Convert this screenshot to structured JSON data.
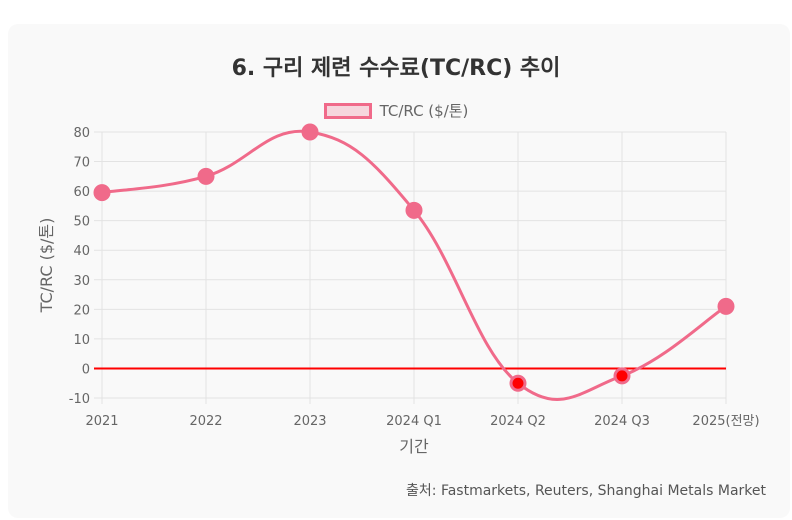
{
  "chart_data": {
    "type": "line",
    "title": "6. 구리 제련 수수료(TC/RC) 추이",
    "xlabel": "기간",
    "ylabel": "TC/RC ($/톤)",
    "categories": [
      "2021",
      "2022",
      "2023",
      "2024 Q1",
      "2024 Q2",
      "2024 Q3",
      "2025(전망)"
    ],
    "series": [
      {
        "name": "TC/RC ($/톤)",
        "values": [
          59.5,
          65,
          80,
          53.5,
          -5,
          -2.5,
          21
        ]
      }
    ],
    "ylim": [
      -10,
      80
    ],
    "yticks": [
      -10,
      0,
      10,
      20,
      30,
      40,
      50,
      60,
      70,
      80
    ],
    "grid": true,
    "legend": "top-center",
    "reference_line": {
      "y": 0,
      "color": "#ff0000"
    },
    "line_color": "#f06a8a",
    "negative_point_color": "#ff0000",
    "source": "출처: Fastmarkets, Reuters, Shanghai Metals Market"
  }
}
